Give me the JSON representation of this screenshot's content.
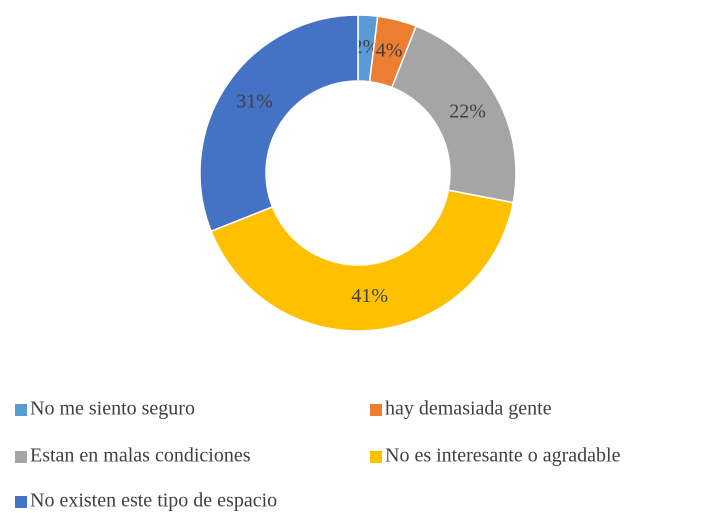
{
  "chart_data": {
    "type": "doughnut",
    "categories": [
      "No me siento seguro",
      "hay demasiada gente",
      "Estan en malas condiciones",
      "No es interesante o agradable",
      "No existen este tipo de espacio"
    ],
    "values": [
      2,
      4,
      22,
      41,
      31
    ],
    "value_labels": [
      "2%",
      "4%",
      "22%",
      "41%",
      "31%"
    ],
    "colors": [
      "#5b9bd5",
      "#ed7d31",
      "#a5a5a5",
      "#ffc000",
      "#4472c4"
    ],
    "legend": "bottom"
  }
}
